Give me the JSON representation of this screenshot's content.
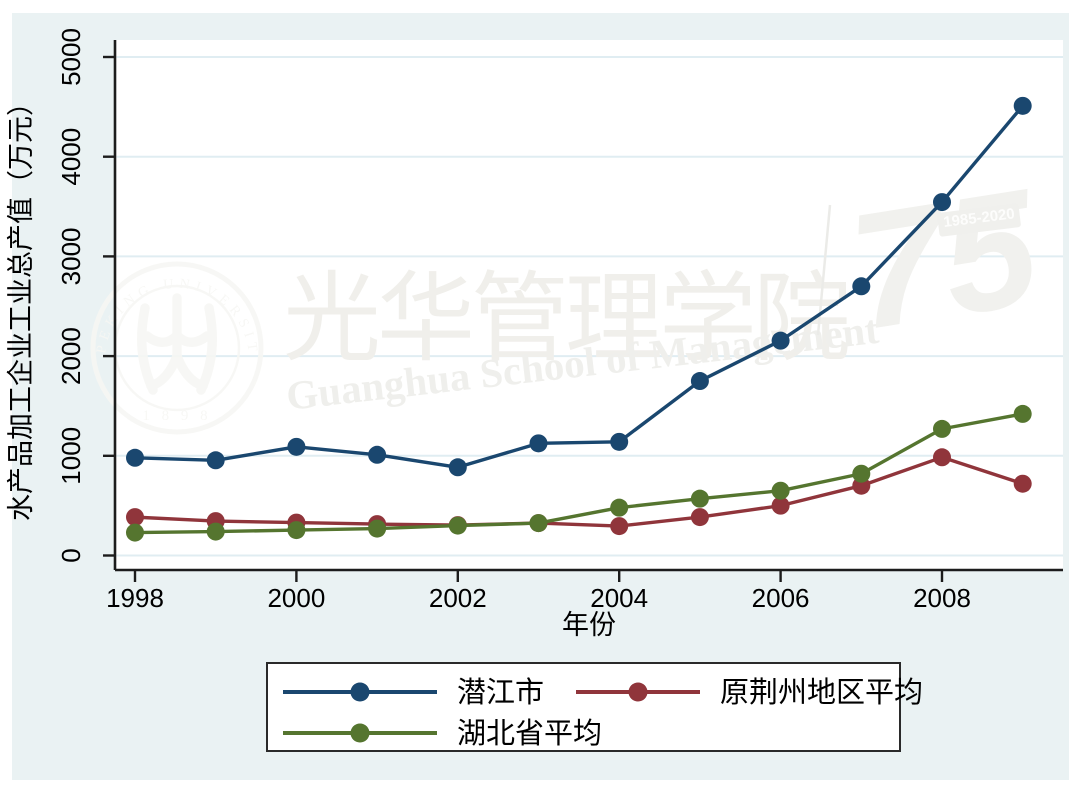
{
  "figure": {
    "bg_color": "#eaf2f3",
    "plot_bg": "#ffffff",
    "grid_color": "#e0edf2",
    "axis_color": "#1c1c1c",
    "legend_border_color": "#2a2a2a"
  },
  "chart_data": {
    "type": "line",
    "x": [
      1998,
      1999,
      2000,
      2001,
      2002,
      2003,
      2004,
      2005,
      2006,
      2007,
      2008,
      2009
    ],
    "series": [
      {
        "name": "潜江市",
        "color": "#1a476f",
        "values": [
          980,
          955,
          1090,
          1010,
          885,
          1125,
          1140,
          1750,
          2155,
          2700,
          3545,
          4510
        ]
      },
      {
        "name": "原荆州地区平均",
        "color": "#90353b",
        "values": [
          385,
          345,
          330,
          315,
          305,
          325,
          295,
          385,
          500,
          700,
          985,
          720
        ]
      },
      {
        "name": "湖北省平均",
        "color": "#55752f",
        "values": [
          230,
          240,
          255,
          270,
          300,
          325,
          480,
          570,
          650,
          820,
          1270,
          1420
        ]
      }
    ],
    "xlabel": "年份",
    "ylabel": "水产品加工企业工业总产值（万元）",
    "ylim": [
      0,
      5000
    ],
    "xlim": [
      1998,
      2009
    ],
    "yticks": [
      0,
      1000,
      2000,
      3000,
      4000,
      5000
    ],
    "xticks": [
      1998,
      2000,
      2002,
      2004,
      2006,
      2008
    ],
    "grid": "horizontal",
    "legend_position": "bottom"
  },
  "watermark": {
    "seal_top_text": "PEKING UNIVERSITY",
    "seal_bottom_text": "1 8 9 8",
    "calligraphy": "光华管理学院",
    "english": "Guanghua School of Management",
    "anniversary_number": "75",
    "anniversary_years": "1985-2020"
  }
}
